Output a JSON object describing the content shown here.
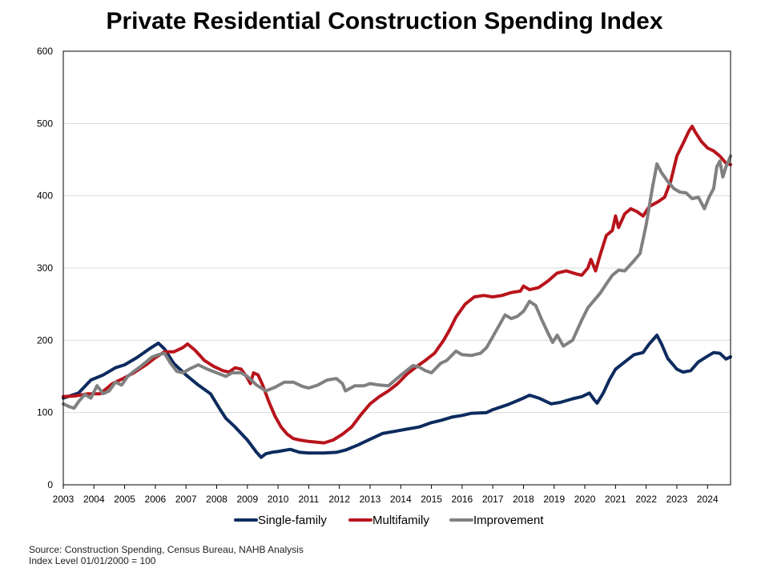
{
  "chart_data": {
    "type": "line",
    "title": "Private Residential Construction Spending Index",
    "xlabel": "",
    "ylabel": "",
    "xlim": [
      2003.0,
      2024.75
    ],
    "ylim": [
      0,
      600
    ],
    "y_ticks": [
      0,
      100,
      200,
      300,
      400,
      500,
      600
    ],
    "x_ticks": [
      2003,
      2004,
      2005,
      2006,
      2007,
      2008,
      2009,
      2010,
      2011,
      2012,
      2013,
      2014,
      2015,
      2016,
      2017,
      2018,
      2019,
      2020,
      2021,
      2022,
      2023,
      2024
    ],
    "grid": "horizontal",
    "legend": "bottom",
    "series": [
      {
        "name": "Single-family",
        "color": "#0d2b5e",
        "points": [
          [
            2003.0,
            120
          ],
          [
            2003.5,
            127
          ],
          [
            2003.9,
            145
          ],
          [
            2004.3,
            152
          ],
          [
            2004.7,
            162
          ],
          [
            2005.0,
            166
          ],
          [
            2005.4,
            176
          ],
          [
            2005.8,
            188
          ],
          [
            2006.1,
            196
          ],
          [
            2006.3,
            188
          ],
          [
            2006.6,
            168
          ],
          [
            2007.0,
            152
          ],
          [
            2007.4,
            138
          ],
          [
            2007.8,
            126
          ],
          [
            2008.1,
            105
          ],
          [
            2008.3,
            92
          ],
          [
            2008.6,
            80
          ],
          [
            2009.0,
            62
          ],
          [
            2009.3,
            45
          ],
          [
            2009.45,
            38
          ],
          [
            2009.6,
            43
          ],
          [
            2009.8,
            45
          ],
          [
            2010.0,
            46
          ],
          [
            2010.4,
            49
          ],
          [
            2010.7,
            45
          ],
          [
            2011.0,
            44
          ],
          [
            2011.5,
            44
          ],
          [
            2011.9,
            45
          ],
          [
            2012.2,
            48
          ],
          [
            2012.6,
            55
          ],
          [
            2013.0,
            63
          ],
          [
            2013.4,
            71
          ],
          [
            2013.8,
            74
          ],
          [
            2014.2,
            77
          ],
          [
            2014.6,
            80
          ],
          [
            2015.0,
            86
          ],
          [
            2015.3,
            89
          ],
          [
            2015.7,
            94
          ],
          [
            2016.0,
            96
          ],
          [
            2016.3,
            99
          ],
          [
            2016.8,
            100
          ],
          [
            2017.0,
            104
          ],
          [
            2017.5,
            111
          ],
          [
            2018.0,
            120
          ],
          [
            2018.2,
            124
          ],
          [
            2018.5,
            120
          ],
          [
            2018.9,
            112
          ],
          [
            2019.2,
            114
          ],
          [
            2019.6,
            119
          ],
          [
            2019.9,
            122
          ],
          [
            2020.15,
            127
          ],
          [
            2020.3,
            118
          ],
          [
            2020.4,
            113
          ],
          [
            2020.6,
            127
          ],
          [
            2020.8,
            145
          ],
          [
            2021.0,
            160
          ],
          [
            2021.3,
            170
          ],
          [
            2021.6,
            180
          ],
          [
            2021.9,
            183
          ],
          [
            2022.1,
            195
          ],
          [
            2022.35,
            207
          ],
          [
            2022.5,
            195
          ],
          [
            2022.7,
            175
          ],
          [
            2023.0,
            160
          ],
          [
            2023.2,
            156
          ],
          [
            2023.45,
            158
          ],
          [
            2023.7,
            170
          ],
          [
            2024.0,
            178
          ],
          [
            2024.2,
            183
          ],
          [
            2024.4,
            182
          ],
          [
            2024.6,
            174
          ],
          [
            2024.75,
            177
          ]
        ]
      },
      {
        "name": "Multifamily",
        "color": "#b8141c",
        "points": [
          [
            2003.0,
            122
          ],
          [
            2003.4,
            123
          ],
          [
            2003.8,
            126
          ],
          [
            2004.2,
            126
          ],
          [
            2004.6,
            140
          ],
          [
            2004.9,
            146
          ],
          [
            2005.3,
            155
          ],
          [
            2005.7,
            166
          ],
          [
            2006.0,
            176
          ],
          [
            2006.3,
            184
          ],
          [
            2006.6,
            184
          ],
          [
            2006.9,
            190
          ],
          [
            2007.05,
            195
          ],
          [
            2007.3,
            186
          ],
          [
            2007.6,
            172
          ],
          [
            2007.9,
            164
          ],
          [
            2008.2,
            158
          ],
          [
            2008.4,
            156
          ],
          [
            2008.6,
            162
          ],
          [
            2008.8,
            160
          ],
          [
            2009.0,
            148
          ],
          [
            2009.1,
            140
          ],
          [
            2009.2,
            155
          ],
          [
            2009.35,
            152
          ],
          [
            2009.5,
            138
          ],
          [
            2009.7,
            115
          ],
          [
            2009.9,
            95
          ],
          [
            2010.1,
            80
          ],
          [
            2010.3,
            70
          ],
          [
            2010.5,
            64
          ],
          [
            2010.7,
            62
          ],
          [
            2011.0,
            60
          ],
          [
            2011.5,
            58
          ],
          [
            2011.8,
            62
          ],
          [
            2012.1,
            70
          ],
          [
            2012.4,
            80
          ],
          [
            2012.7,
            97
          ],
          [
            2013.0,
            112
          ],
          [
            2013.3,
            122
          ],
          [
            2013.6,
            130
          ],
          [
            2013.9,
            140
          ],
          [
            2014.2,
            153
          ],
          [
            2014.5,
            163
          ],
          [
            2014.8,
            172
          ],
          [
            2015.1,
            182
          ],
          [
            2015.4,
            200
          ],
          [
            2015.6,
            215
          ],
          [
            2015.8,
            232
          ],
          [
            2016.1,
            250
          ],
          [
            2016.4,
            260
          ],
          [
            2016.7,
            262
          ],
          [
            2017.0,
            260
          ],
          [
            2017.3,
            262
          ],
          [
            2017.6,
            266
          ],
          [
            2017.9,
            268
          ],
          [
            2018.0,
            275
          ],
          [
            2018.2,
            270
          ],
          [
            2018.5,
            273
          ],
          [
            2018.8,
            282
          ],
          [
            2019.1,
            293
          ],
          [
            2019.4,
            296
          ],
          [
            2019.7,
            292
          ],
          [
            2019.9,
            290
          ],
          [
            2020.1,
            300
          ],
          [
            2020.2,
            312
          ],
          [
            2020.35,
            296
          ],
          [
            2020.5,
            318
          ],
          [
            2020.7,
            345
          ],
          [
            2020.9,
            352
          ],
          [
            2021.0,
            372
          ],
          [
            2021.1,
            356
          ],
          [
            2021.3,
            375
          ],
          [
            2021.5,
            382
          ],
          [
            2021.7,
            378
          ],
          [
            2021.9,
            372
          ],
          [
            2022.1,
            385
          ],
          [
            2022.4,
            392
          ],
          [
            2022.6,
            398
          ],
          [
            2022.8,
            420
          ],
          [
            2023.0,
            455
          ],
          [
            2023.2,
            472
          ],
          [
            2023.4,
            490
          ],
          [
            2023.5,
            496
          ],
          [
            2023.6,
            488
          ],
          [
            2023.8,
            475
          ],
          [
            2024.0,
            466
          ],
          [
            2024.2,
            462
          ],
          [
            2024.4,
            455
          ],
          [
            2024.6,
            445
          ],
          [
            2024.75,
            443
          ]
        ]
      },
      {
        "name": "Improvement",
        "color": "#808080",
        "points": [
          [
            2003.0,
            112
          ],
          [
            2003.2,
            108
          ],
          [
            2003.35,
            106
          ],
          [
            2003.5,
            115
          ],
          [
            2003.7,
            125
          ],
          [
            2003.9,
            120
          ],
          [
            2004.1,
            137
          ],
          [
            2004.3,
            126
          ],
          [
            2004.5,
            130
          ],
          [
            2004.7,
            142
          ],
          [
            2004.9,
            138
          ],
          [
            2005.1,
            150
          ],
          [
            2005.3,
            157
          ],
          [
            2005.5,
            163
          ],
          [
            2005.7,
            170
          ],
          [
            2005.9,
            177
          ],
          [
            2006.1,
            180
          ],
          [
            2006.3,
            182
          ],
          [
            2006.5,
            168
          ],
          [
            2006.7,
            157
          ],
          [
            2006.9,
            155
          ],
          [
            2007.1,
            160
          ],
          [
            2007.4,
            166
          ],
          [
            2007.7,
            160
          ],
          [
            2008.0,
            155
          ],
          [
            2008.3,
            150
          ],
          [
            2008.5,
            155
          ],
          [
            2008.8,
            155
          ],
          [
            2009.0,
            150
          ],
          [
            2009.3,
            138
          ],
          [
            2009.6,
            130
          ],
          [
            2009.9,
            135
          ],
          [
            2010.2,
            142
          ],
          [
            2010.5,
            142
          ],
          [
            2010.8,
            136
          ],
          [
            2011.0,
            134
          ],
          [
            2011.3,
            138
          ],
          [
            2011.6,
            145
          ],
          [
            2011.9,
            147
          ],
          [
            2012.1,
            140
          ],
          [
            2012.2,
            130
          ],
          [
            2012.5,
            137
          ],
          [
            2012.8,
            137
          ],
          [
            2013.0,
            140
          ],
          [
            2013.3,
            138
          ],
          [
            2013.6,
            137
          ],
          [
            2013.9,
            148
          ],
          [
            2014.1,
            155
          ],
          [
            2014.4,
            165
          ],
          [
            2014.6,
            163
          ],
          [
            2014.8,
            158
          ],
          [
            2015.0,
            155
          ],
          [
            2015.3,
            168
          ],
          [
            2015.5,
            172
          ],
          [
            2015.8,
            185
          ],
          [
            2016.0,
            180
          ],
          [
            2016.3,
            179
          ],
          [
            2016.6,
            182
          ],
          [
            2016.8,
            190
          ],
          [
            2017.0,
            205
          ],
          [
            2017.2,
            220
          ],
          [
            2017.4,
            235
          ],
          [
            2017.6,
            230
          ],
          [
            2017.8,
            233
          ],
          [
            2018.0,
            240
          ],
          [
            2018.2,
            254
          ],
          [
            2018.4,
            248
          ],
          [
            2018.6,
            228
          ],
          [
            2018.8,
            210
          ],
          [
            2018.95,
            197
          ],
          [
            2019.1,
            207
          ],
          [
            2019.3,
            192
          ],
          [
            2019.6,
            200
          ],
          [
            2019.9,
            228
          ],
          [
            2020.1,
            245
          ],
          [
            2020.3,
            255
          ],
          [
            2020.5,
            265
          ],
          [
            2020.7,
            278
          ],
          [
            2020.9,
            290
          ],
          [
            2021.1,
            297
          ],
          [
            2021.3,
            296
          ],
          [
            2021.6,
            310
          ],
          [
            2021.8,
            320
          ],
          [
            2022.0,
            360
          ],
          [
            2022.2,
            410
          ],
          [
            2022.35,
            444
          ],
          [
            2022.5,
            432
          ],
          [
            2022.7,
            420
          ],
          [
            2022.9,
            410
          ],
          [
            2023.1,
            405
          ],
          [
            2023.3,
            404
          ],
          [
            2023.5,
            396
          ],
          [
            2023.7,
            398
          ],
          [
            2023.9,
            382
          ],
          [
            2024.05,
            398
          ],
          [
            2024.2,
            410
          ],
          [
            2024.3,
            440
          ],
          [
            2024.4,
            448
          ],
          [
            2024.5,
            426
          ],
          [
            2024.6,
            440
          ],
          [
            2024.75,
            455
          ]
        ]
      }
    ]
  },
  "source_line1": "Source: Construction Spending, Census Bureau, NAHB  Analysis",
  "source_line2": "Index Level 01/01/2000 = 100"
}
